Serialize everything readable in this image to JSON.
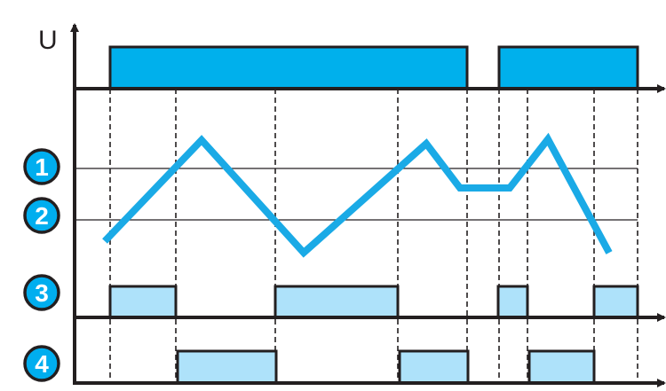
{
  "diagram": {
    "axis_label": "U",
    "markers": [
      "1",
      "2",
      "3",
      "4"
    ],
    "colors": {
      "supply_fill": "#00b0ec",
      "signal_line": "#1aaae6",
      "relay_fill": "#aee2fa",
      "marker_fill": "#00aeef",
      "stroke": "#231f20"
    }
  }
}
